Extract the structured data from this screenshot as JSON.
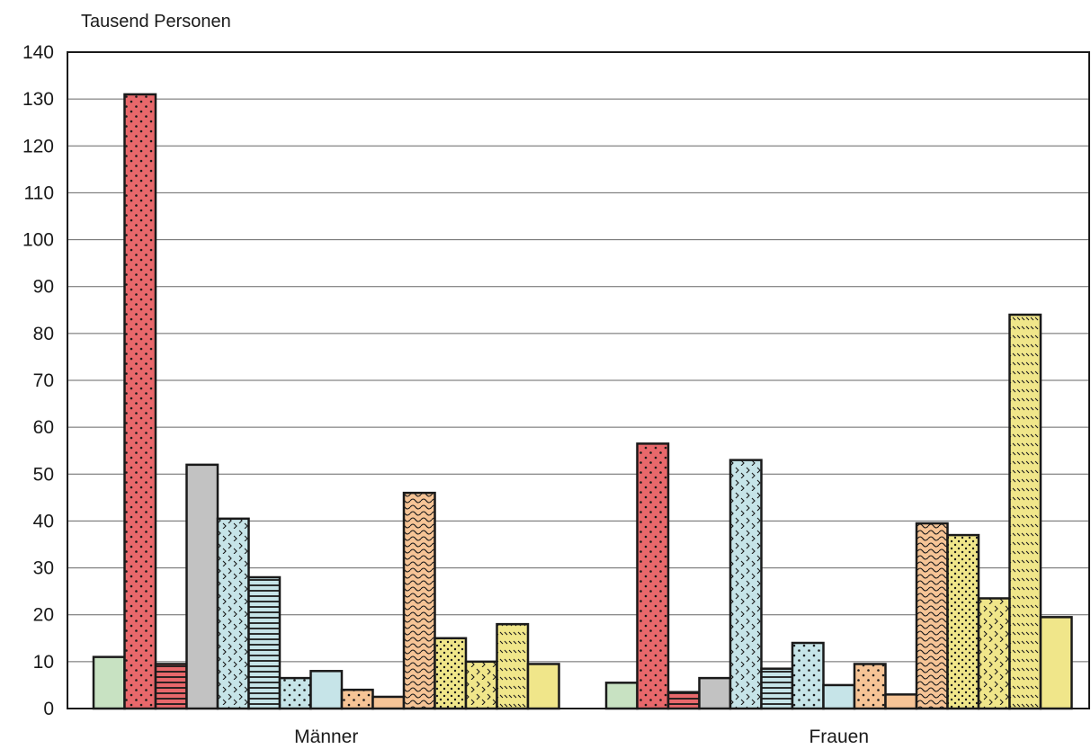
{
  "chart_data": {
    "type": "bar",
    "ylabel": "Tausend Personen",
    "categories": [
      "Männer",
      "Frauen"
    ],
    "ylim": [
      0,
      140
    ],
    "yticks": [
      0,
      10,
      20,
      30,
      40,
      50,
      60,
      70,
      80,
      90,
      100,
      110,
      120,
      130,
      140
    ],
    "grid": true,
    "legend": "none",
    "series": [
      {
        "color": "#c8e2c2",
        "pattern": "none",
        "values": [
          11,
          5.5
        ]
      },
      {
        "color": "#e8686b",
        "pattern": "dots",
        "values": [
          131,
          56.5
        ]
      },
      {
        "color": "#e8686b",
        "pattern": "hlines",
        "values": [
          9.5,
          3.5
        ]
      },
      {
        "color": "#c2c2c2",
        "pattern": "none",
        "values": [
          52,
          6.5
        ]
      },
      {
        "color": "#c6e4e8",
        "pattern": "chevrons",
        "values": [
          40.5,
          53
        ]
      },
      {
        "color": "#c6e4e8",
        "pattern": "hlines",
        "values": [
          28,
          8.5
        ]
      },
      {
        "color": "#c6e4e8",
        "pattern": "dots",
        "values": [
          6.5,
          14
        ]
      },
      {
        "color": "#c6e4e8",
        "pattern": "none",
        "values": [
          8,
          5
        ]
      },
      {
        "color": "#f6c496",
        "pattern": "dots",
        "values": [
          4,
          9.5
        ]
      },
      {
        "color": "#f6c496",
        "pattern": "none",
        "values": [
          2.5,
          3
        ]
      },
      {
        "color": "#f6c496",
        "pattern": "waves",
        "values": [
          46,
          39.5
        ]
      },
      {
        "color": "#f0e68a",
        "pattern": "dots-dense",
        "values": [
          15,
          37
        ]
      },
      {
        "color": "#f0e68a",
        "pattern": "chevrons",
        "values": [
          10,
          23.5
        ]
      },
      {
        "color": "#f0e68a",
        "pattern": "diag",
        "values": [
          18,
          84
        ]
      },
      {
        "color": "#f0e68a",
        "pattern": "none",
        "values": [
          9.5,
          19.5
        ]
      }
    ]
  }
}
